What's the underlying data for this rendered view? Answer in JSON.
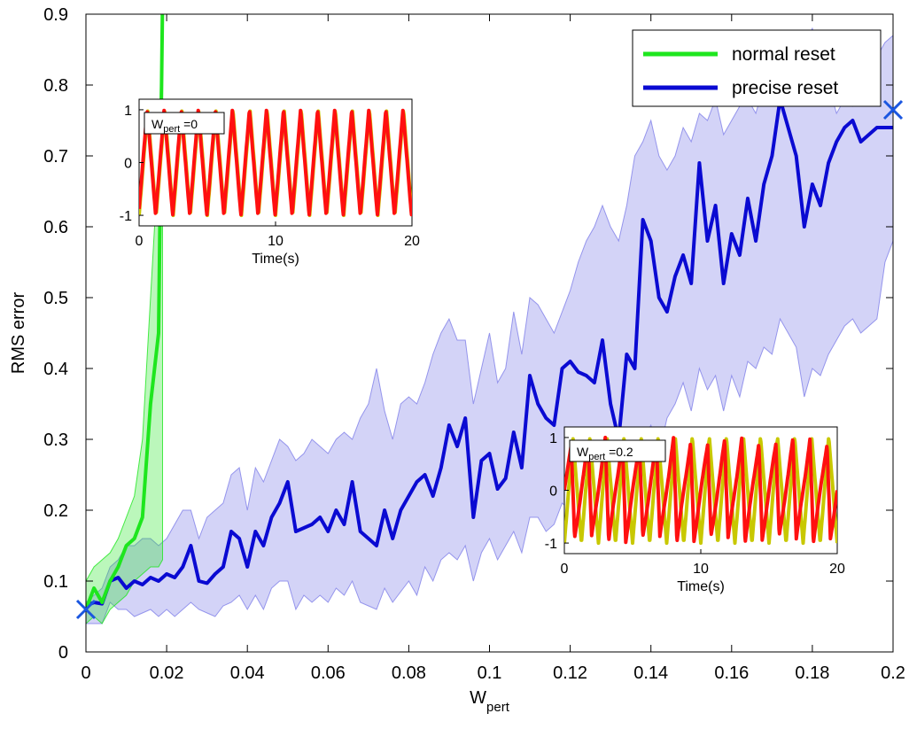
{
  "chart_data": [
    {
      "id": "main",
      "type": "line",
      "xlabel": "W",
      "xlabel_sub": "pert",
      "ylabel": "RMS error",
      "xlim": [
        0,
        0.2
      ],
      "ylim": [
        0,
        0.9
      ],
      "x_ticks": [
        0,
        0.02,
        0.04,
        0.06,
        0.08,
        0.1,
        0.12,
        0.14,
        0.16,
        0.18,
        0.2
      ],
      "x_tick_labels": [
        "0",
        "0.02",
        "0.04",
        "0.06",
        "0.08",
        "0.1",
        "0.12",
        "0.14",
        "0.16",
        "0.18",
        "0.2"
      ],
      "y_ticks": [
        0,
        0.1,
        0.2,
        0.3,
        0.4,
        0.5,
        0.6,
        0.7,
        0.8,
        0.9
      ],
      "y_tick_labels": [
        "0",
        "0.1",
        "0.2",
        "0.3",
        "0.4",
        "0.5",
        "0.6",
        "0.7",
        "0.8",
        "0.9"
      ],
      "grid": false,
      "legend_position": "top-right",
      "series": [
        {
          "name": "normal reset",
          "color": "#1ee61e",
          "band_color": "#1ee61e",
          "x": [
            0,
            0.002,
            0.004,
            0.006,
            0.008,
            0.01,
            0.012,
            0.014,
            0.016,
            0.018,
            0.019
          ],
          "y": [
            0.06,
            0.09,
            0.07,
            0.1,
            0.12,
            0.15,
            0.16,
            0.19,
            0.35,
            0.45,
            0.92
          ],
          "upper": [
            0.1,
            0.12,
            0.13,
            0.14,
            0.16,
            0.19,
            0.22,
            0.3,
            0.5,
            0.7,
            0.92
          ],
          "lower": [
            0.04,
            0.05,
            0.04,
            0.06,
            0.07,
            0.08,
            0.1,
            0.11,
            0.12,
            0.12,
            0.13
          ]
        },
        {
          "name": "precise reset",
          "color": "#0a0ad2",
          "band_color": "#8080e8",
          "x": [
            0,
            0.002,
            0.004,
            0.006,
            0.008,
            0.01,
            0.012,
            0.014,
            0.016,
            0.018,
            0.02,
            0.022,
            0.024,
            0.026,
            0.028,
            0.03,
            0.032,
            0.034,
            0.036,
            0.038,
            0.04,
            0.042,
            0.044,
            0.046,
            0.048,
            0.05,
            0.052,
            0.054,
            0.056,
            0.058,
            0.06,
            0.062,
            0.064,
            0.066,
            0.068,
            0.07,
            0.072,
            0.074,
            0.076,
            0.078,
            0.08,
            0.082,
            0.084,
            0.086,
            0.088,
            0.09,
            0.092,
            0.094,
            0.096,
            0.098,
            0.1,
            0.102,
            0.104,
            0.106,
            0.108,
            0.11,
            0.112,
            0.114,
            0.116,
            0.118,
            0.12,
            0.122,
            0.124,
            0.126,
            0.128,
            0.13,
            0.132,
            0.134,
            0.136,
            0.138,
            0.14,
            0.142,
            0.144,
            0.146,
            0.148,
            0.15,
            0.152,
            0.154,
            0.156,
            0.158,
            0.16,
            0.162,
            0.164,
            0.166,
            0.168,
            0.17,
            0.172,
            0.174,
            0.176,
            0.178,
            0.18,
            0.182,
            0.184,
            0.186,
            0.188,
            0.19,
            0.192,
            0.194,
            0.196,
            0.198,
            0.2
          ],
          "y": [
            0.065,
            0.07,
            0.068,
            0.1,
            0.105,
            0.09,
            0.1,
            0.095,
            0.105,
            0.1,
            0.11,
            0.105,
            0.12,
            0.15,
            0.1,
            0.097,
            0.11,
            0.12,
            0.17,
            0.16,
            0.12,
            0.17,
            0.15,
            0.19,
            0.21,
            0.24,
            0.17,
            0.175,
            0.18,
            0.19,
            0.17,
            0.2,
            0.18,
            0.24,
            0.17,
            0.16,
            0.15,
            0.2,
            0.16,
            0.2,
            0.22,
            0.24,
            0.25,
            0.22,
            0.26,
            0.32,
            0.29,
            0.33,
            0.19,
            0.27,
            0.28,
            0.23,
            0.245,
            0.31,
            0.26,
            0.39,
            0.35,
            0.33,
            0.32,
            0.4,
            0.41,
            0.395,
            0.39,
            0.38,
            0.44,
            0.35,
            0.3,
            0.42,
            0.4,
            0.61,
            0.58,
            0.5,
            0.48,
            0.53,
            0.56,
            0.52,
            0.69,
            0.58,
            0.63,
            0.52,
            0.59,
            0.56,
            0.64,
            0.58,
            0.66,
            0.7,
            0.78,
            0.74,
            0.7,
            0.6,
            0.66,
            0.63,
            0.69,
            0.72,
            0.74,
            0.75,
            0.72,
            0.73,
            0.74,
            0.74,
            0.74
          ],
          "upper": [
            0.07,
            0.08,
            0.09,
            0.12,
            0.13,
            0.15,
            0.15,
            0.16,
            0.16,
            0.15,
            0.16,
            0.18,
            0.2,
            0.2,
            0.16,
            0.19,
            0.2,
            0.21,
            0.25,
            0.26,
            0.2,
            0.26,
            0.24,
            0.27,
            0.3,
            0.29,
            0.27,
            0.28,
            0.3,
            0.29,
            0.28,
            0.3,
            0.31,
            0.3,
            0.33,
            0.35,
            0.4,
            0.34,
            0.3,
            0.35,
            0.36,
            0.35,
            0.38,
            0.42,
            0.45,
            0.47,
            0.44,
            0.44,
            0.35,
            0.4,
            0.45,
            0.38,
            0.4,
            0.48,
            0.42,
            0.5,
            0.49,
            0.47,
            0.45,
            0.48,
            0.51,
            0.55,
            0.58,
            0.6,
            0.63,
            0.6,
            0.58,
            0.63,
            0.7,
            0.72,
            0.75,
            0.7,
            0.68,
            0.7,
            0.74,
            0.72,
            0.76,
            0.75,
            0.78,
            0.73,
            0.75,
            0.77,
            0.78,
            0.76,
            0.8,
            0.82,
            0.85,
            0.84,
            0.82,
            0.86,
            0.88,
            0.84,
            0.8,
            0.76,
            0.78,
            0.77,
            0.8,
            0.82,
            0.84,
            0.86,
            0.87
          ],
          "lower": [
            0.04,
            0.04,
            0.04,
            0.07,
            0.06,
            0.06,
            0.05,
            0.055,
            0.06,
            0.05,
            0.06,
            0.05,
            0.06,
            0.07,
            0.06,
            0.055,
            0.05,
            0.065,
            0.07,
            0.08,
            0.06,
            0.08,
            0.06,
            0.09,
            0.1,
            0.1,
            0.06,
            0.08,
            0.07,
            0.08,
            0.07,
            0.09,
            0.08,
            0.1,
            0.07,
            0.065,
            0.06,
            0.09,
            0.07,
            0.085,
            0.1,
            0.08,
            0.12,
            0.1,
            0.13,
            0.14,
            0.13,
            0.15,
            0.1,
            0.14,
            0.16,
            0.13,
            0.15,
            0.17,
            0.14,
            0.19,
            0.19,
            0.17,
            0.18,
            0.21,
            0.2,
            0.22,
            0.24,
            0.23,
            0.26,
            0.23,
            0.24,
            0.27,
            0.25,
            0.3,
            0.32,
            0.28,
            0.33,
            0.35,
            0.38,
            0.34,
            0.4,
            0.37,
            0.39,
            0.34,
            0.39,
            0.36,
            0.41,
            0.4,
            0.43,
            0.42,
            0.47,
            0.45,
            0.43,
            0.36,
            0.4,
            0.39,
            0.42,
            0.44,
            0.46,
            0.47,
            0.45,
            0.46,
            0.47,
            0.55,
            0.58
          ]
        }
      ],
      "markers": [
        {
          "x": 0,
          "y": 0.06,
          "symbol": "x",
          "color": "#1a56e0"
        },
        {
          "x": 0.2,
          "y": 0.765,
          "symbol": "x",
          "color": "#1a56e0"
        }
      ]
    },
    {
      "id": "inset-1",
      "type": "line",
      "annotation_main": "W",
      "annotation_sub": "pert",
      "annotation_value": " =0",
      "xlabel": "Time(s)",
      "ylabel": "",
      "xlim": [
        0,
        20
      ],
      "ylim": [
        -1.2,
        1.2
      ],
      "x_ticks": [
        0,
        10,
        20
      ],
      "x_tick_labels": [
        "0",
        "10",
        "20"
      ],
      "y_ticks": [
        -1,
        0,
        1
      ],
      "y_tick_labels": [
        "-1",
        "0",
        "1"
      ],
      "series": [
        {
          "color": "#c8c800",
          "waveform": "triangle",
          "period": 1.25,
          "amplitude": 1,
          "phase": 0
        },
        {
          "color": "#ff1010",
          "waveform": "triangle",
          "period": 1.25,
          "amplitude": 1,
          "phase": 0.03
        }
      ]
    },
    {
      "id": "inset-2",
      "type": "line",
      "annotation_main": "W",
      "annotation_sub": "pert",
      "annotation_value": " =0.2",
      "xlabel": "Time(s)",
      "ylabel": "",
      "xlim": [
        0,
        20
      ],
      "ylim": [
        -1.2,
        1.2
      ],
      "x_ticks": [
        0,
        10,
        20
      ],
      "x_tick_labels": [
        "0",
        "10",
        "20"
      ],
      "y_ticks": [
        -1,
        0,
        1
      ],
      "y_tick_labels": [
        "-1",
        "0",
        "1"
      ],
      "series": [
        {
          "color": "#c8c800",
          "waveform": "triangle",
          "period": 1.25,
          "amplitude": 1,
          "phase": 0
        },
        {
          "color": "#ff1010",
          "waveform": "sawtooth",
          "period": 1.25,
          "amplitude": 1,
          "phase": 0.4,
          "jitter": 0.15
        }
      ]
    }
  ]
}
